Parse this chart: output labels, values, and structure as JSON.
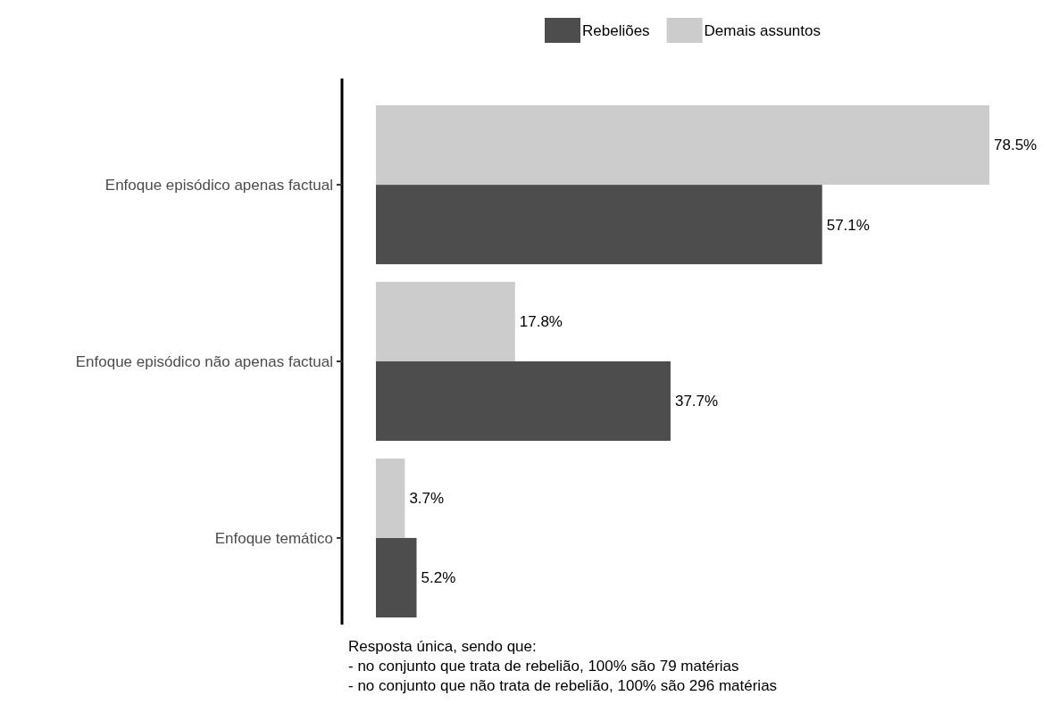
{
  "chart_data": {
    "type": "bar",
    "orientation": "horizontal",
    "categories": [
      "Enfoque episódico apenas factual",
      "Enfoque episódico não apenas factual",
      "Enfoque temático"
    ],
    "series": [
      {
        "name": "Rebeliões",
        "color": "#4d4d4d",
        "values": [
          57.1,
          37.7,
          5.2
        ],
        "value_labels": [
          "57.1%",
          "37.7%",
          "5.2%"
        ]
      },
      {
        "name": "Demais assuntos",
        "color": "#cccccc",
        "values": [
          78.5,
          17.8,
          3.7
        ],
        "value_labels": [
          "78.5%",
          "17.8%",
          "3.7%"
        ]
      }
    ],
    "legend": "top",
    "grid": false,
    "annotations": [
      "Resposta única, sendo que:",
      "- no conjunto que trata de rebelião, 100% são 79 matérias",
      "- no conjunto que não trata de rebelião, 100% são 296 matérias"
    ]
  }
}
